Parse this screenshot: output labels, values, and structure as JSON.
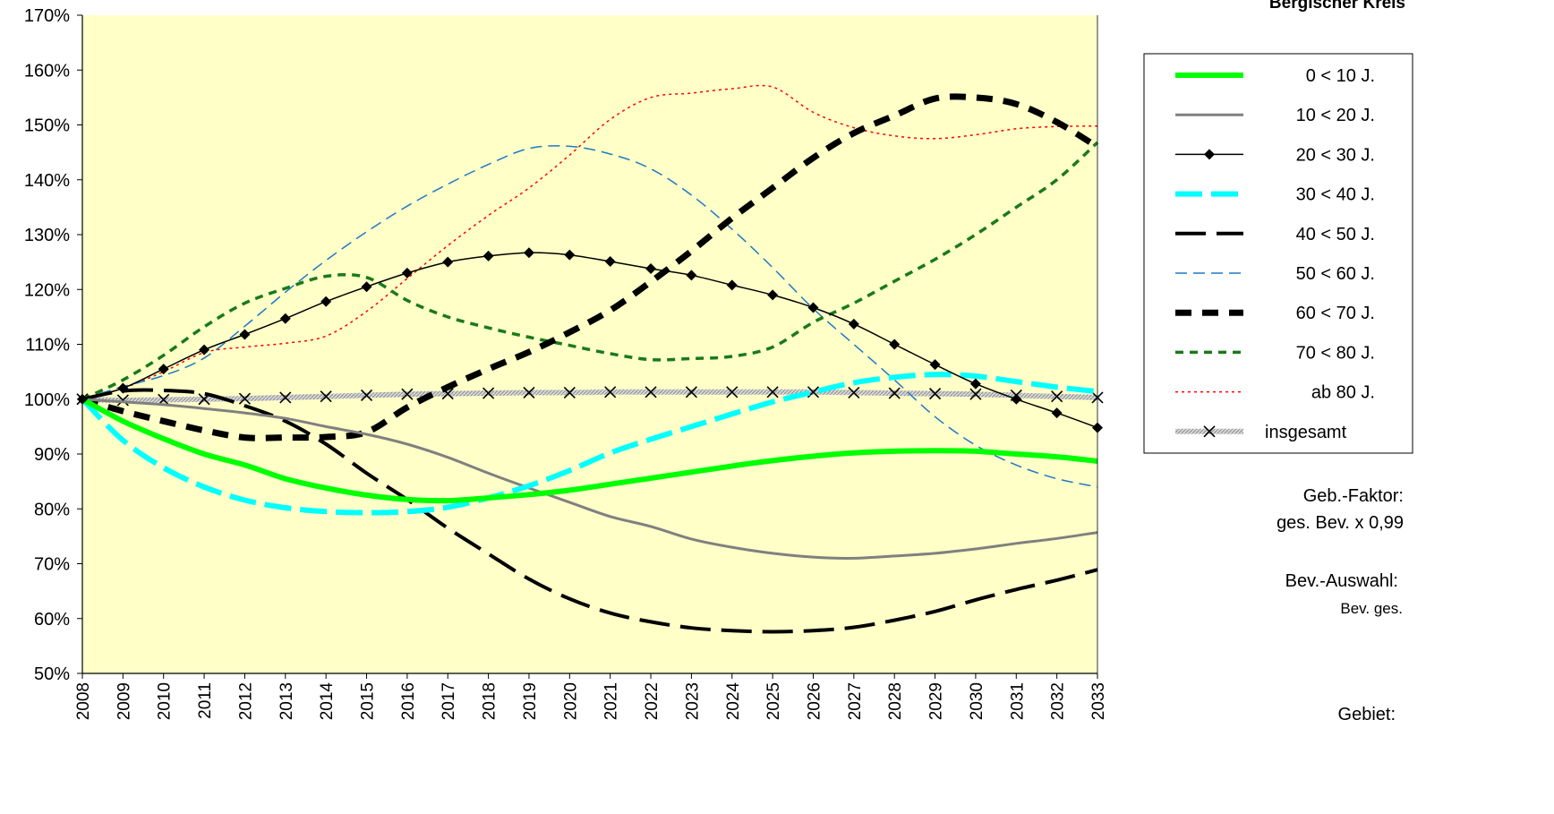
{
  "sidebar": {
    "region_title": "Bergischer Kreis",
    "factor_label": "Geb.-Faktor:",
    "factor_value": "ges. Bev. x 0,99",
    "selection_label": "Bev.-Auswahl:",
    "selection_value": "Bev. ges.",
    "area_label": "Gebiet:"
  },
  "chart_data": {
    "type": "line",
    "x": [
      "2008",
      "2009",
      "2010",
      "2011",
      "2012",
      "2013",
      "2014",
      "2015",
      "2016",
      "2017",
      "2018",
      "2019",
      "2020",
      "2021",
      "2022",
      "2023",
      "2024",
      "2025",
      "2026",
      "2027",
      "2028",
      "2029",
      "2030",
      "2031",
      "2032",
      "2033"
    ],
    "ylim": [
      50,
      170
    ],
    "yticks": [
      "50%",
      "60%",
      "70%",
      "80%",
      "90%",
      "100%",
      "110%",
      "120%",
      "130%",
      "140%",
      "150%",
      "160%",
      "170%"
    ],
    "grid": false,
    "legend_position": "right",
    "plot_background": "#ffffc8",
    "series": [
      {
        "name": "0 <  10  J.",
        "color": "#00ff00",
        "style": "thick-solid",
        "values": [
          100,
          96,
          92.8,
          90,
          88,
          85.5,
          83.8,
          82.5,
          81.7,
          81.5,
          82,
          82.6,
          83.4,
          84.5,
          85.6,
          86.7,
          87.8,
          88.8,
          89.6,
          90.2,
          90.5,
          90.6,
          90.5,
          90,
          89.5,
          88.7
        ]
      },
      {
        "name": "10 <  20  J.",
        "color": "#808080",
        "style": "solid",
        "values": [
          100,
          99.5,
          99,
          98.3,
          97.5,
          96.5,
          95,
          93.6,
          91.8,
          89.4,
          86.5,
          83.8,
          81.2,
          78.6,
          76.8,
          74.5,
          73,
          71.9,
          71.2,
          71,
          71.4,
          71.9,
          72.7,
          73.7,
          74.6,
          75.7
        ]
      },
      {
        "name": "20 <  30  J.",
        "color": "#000000",
        "style": "solid-diamond",
        "values": [
          100,
          102,
          105.5,
          109,
          111.8,
          114.7,
          117.8,
          120.5,
          123,
          125,
          126.1,
          126.7,
          126.3,
          125.1,
          123.8,
          122.6,
          120.8,
          119,
          116.7,
          113.7,
          110,
          106.3,
          102.8,
          100,
          97.5,
          94.8
        ]
      },
      {
        "name": "30 <  40  J.",
        "color": "#00ffff",
        "style": "thick-dash",
        "values": [
          100,
          92.5,
          87.5,
          84,
          81.6,
          80.2,
          79.5,
          79.3,
          79.5,
          80.3,
          82,
          84.2,
          87,
          90.2,
          92.7,
          95,
          97.3,
          99.5,
          101.3,
          103,
          104,
          104.5,
          104.2,
          103.2,
          102.2,
          101.4
        ]
      },
      {
        "name": "40 <  50  J.",
        "color": "#000000",
        "style": "long-dash",
        "values": [
          100,
          101.5,
          101.6,
          101,
          98.8,
          96,
          91.8,
          86.5,
          81.7,
          76.5,
          71.8,
          67.2,
          63.6,
          61,
          59.4,
          58.3,
          57.8,
          57.6,
          57.8,
          58.4,
          59.7,
          61.3,
          63.4,
          65.3,
          67,
          68.9
        ]
      },
      {
        "name": "50 <  60  J.",
        "color": "#1f78c8",
        "style": "thin-dash",
        "values": [
          100,
          102.3,
          104.3,
          107.5,
          113.3,
          119.5,
          125.3,
          130.5,
          135.2,
          139.2,
          142.8,
          145.7,
          146.1,
          144.7,
          142,
          137.2,
          131,
          124,
          116.5,
          110,
          103.5,
          96.8,
          91.6,
          88,
          85.5,
          84
        ]
      },
      {
        "name": "60 <  70  J.",
        "color": "#000000",
        "style": "heavy-dash",
        "values": [
          100,
          97.8,
          96,
          94.3,
          93,
          93,
          93.1,
          94,
          98.5,
          102.2,
          105.5,
          108.6,
          112.2,
          116.2,
          121.4,
          127,
          133,
          138.5,
          144,
          148.5,
          151.7,
          154.8,
          155,
          153.8,
          150.5,
          146
        ]
      },
      {
        "name": "70 <  80  J.",
        "color": "#1a7a1a",
        "style": "dotted-dash",
        "values": [
          100,
          103.5,
          108,
          113.2,
          117.5,
          120.2,
          122.4,
          122.2,
          118,
          115,
          113,
          111.3,
          109.8,
          108.3,
          107.2,
          107.4,
          107.8,
          109.5,
          114,
          117.5,
          121.5,
          125.5,
          130,
          135,
          140,
          146.8
        ]
      },
      {
        "name": "ab 80  J.",
        "color": "#ff0000",
        "style": "fine-dot",
        "values": [
          100,
          102,
          105,
          108.5,
          109.5,
          110.2,
          111.5,
          116,
          122,
          128,
          133.5,
          138.5,
          144.5,
          151,
          155,
          155.8,
          156.6,
          156.9,
          152.3,
          149.5,
          148,
          147.5,
          148.2,
          149.3,
          149.7,
          149.8
        ]
      },
      {
        "name": "insgesamt",
        "color": "#a0a0a0",
        "style": "hatched-x",
        "values": [
          100,
          99.8,
          99.9,
          100,
          100.1,
          100.3,
          100.5,
          100.7,
          100.9,
          101,
          101.1,
          101.2,
          101.2,
          101.3,
          101.3,
          101.3,
          101.3,
          101.3,
          101.3,
          101.2,
          101.1,
          101,
          100.9,
          100.7,
          100.5,
          100.3
        ]
      }
    ]
  }
}
